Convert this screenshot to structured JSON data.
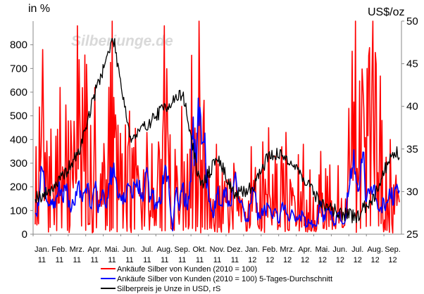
{
  "chart_data": {
    "type": "line",
    "title": "",
    "watermark": "Silberjunge.de",
    "left_axis": {
      "unit_label": "in %",
      "ylim": [
        0,
        900
      ],
      "ticks": [
        "0",
        "100",
        "200",
        "300",
        "400",
        "500",
        "600",
        "700",
        "800"
      ]
    },
    "right_axis": {
      "unit_label": "US$/oz",
      "ylim": [
        25,
        50
      ],
      "ticks": [
        "25",
        "30",
        "35",
        "40",
        "45",
        "50"
      ]
    },
    "x_axis": {
      "months": [
        "Jan.",
        "Feb.",
        "Mrz.",
        "Apr.",
        "Mai.",
        "Jun.",
        "Jul.",
        "Aug.",
        "Sep.",
        "Okt.",
        "Nov.",
        "Dez.",
        "Jan.",
        "Feb.",
        "Mrz.",
        "Apr.",
        "Mai.",
        "Jun.",
        "Jul.",
        "Aug.",
        "Sep."
      ],
      "years": [
        "11",
        "11",
        "11",
        "11",
        "11",
        "11",
        "11",
        "11",
        "11",
        "11",
        "11",
        "11",
        "12",
        "12",
        "12",
        "12",
        "12",
        "12",
        "12",
        "12",
        "12"
      ]
    },
    "grid": false,
    "legend_position": "bottom",
    "series": [
      {
        "name": "Ankäufe Silber von Kunden (2010 = 100)",
        "axis": "left",
        "color": "#ff0000",
        "month_peaks": [
          780,
          620,
          880,
          620,
          900,
          520,
          430,
          880,
          540,
          900,
          380,
          300,
          370,
          450,
          430,
          380,
          350,
          290,
          900,
          900,
          400
        ]
      },
      {
        "name": "Ankäufe Silber von Kunden (2010 = 100) 5-Tages-Durchschnitt",
        "axis": "left",
        "color": "#0000ff",
        "month_peaks": [
          290,
          270,
          230,
          300,
          350,
          250,
          310,
          320,
          290,
          780,
          260,
          220,
          220,
          170,
          150,
          140,
          160,
          140,
          370,
          200,
          290
        ]
      },
      {
        "name": "Silberpreis je Unze in USD, rS",
        "axis": "right",
        "color": "#000000",
        "month_values": [
          29.5,
          31.5,
          34.5,
          42,
          48,
          36,
          38,
          40,
          41.5,
          30.5,
          34,
          29.5,
          30.5,
          34.5,
          34,
          31.5,
          28.5,
          27.5,
          27,
          29.5,
          34.5
        ]
      }
    ]
  }
}
